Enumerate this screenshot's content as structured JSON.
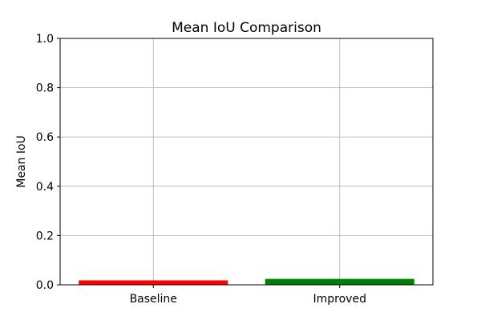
{
  "chart_data": {
    "type": "bar",
    "title": "Mean IoU Comparison",
    "xlabel": "",
    "ylabel": "Mean IoU",
    "categories": [
      "Baseline",
      "Improved"
    ],
    "values": [
      0.018,
      0.024
    ],
    "colors": [
      "#ff0000",
      "#008000"
    ],
    "ylim": [
      0,
      1.0
    ],
    "yticks": [
      "0.0",
      "0.2",
      "0.4",
      "0.6",
      "0.8",
      "1.0"
    ],
    "grid": true
  }
}
